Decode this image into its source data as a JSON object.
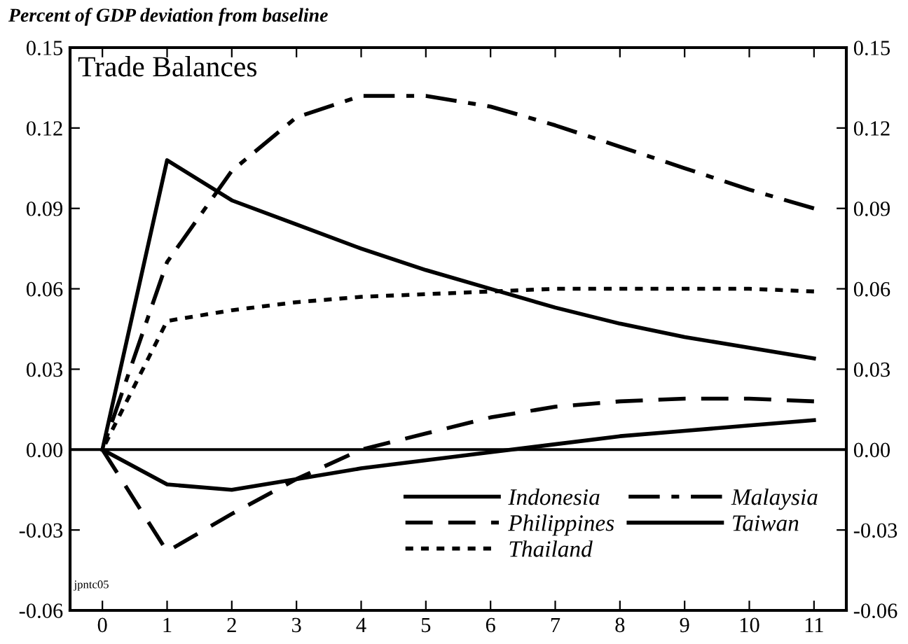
{
  "chart_data": {
    "type": "line",
    "title": "Trade Balances",
    "ylabel": "Percent of GDP deviation from baseline",
    "x": [
      0,
      1,
      2,
      3,
      4,
      5,
      6,
      7,
      8,
      9,
      10,
      11
    ],
    "series": [
      {
        "name": "Indonesia",
        "color": "#000000",
        "line_style": "solid",
        "values": [
          0,
          0.108,
          0.093,
          0.084,
          0.075,
          0.067,
          0.06,
          0.053,
          0.047,
          0.042,
          0.038,
          0.034
        ]
      },
      {
        "name": "Malaysia",
        "color": "#000000",
        "line_style": "dashdot",
        "values": [
          0,
          0.07,
          0.104,
          0.124,
          0.132,
          0.132,
          0.128,
          0.121,
          0.113,
          0.105,
          0.097,
          0.09
        ]
      },
      {
        "name": "Philippines",
        "color": "#000000",
        "line_style": "dashed",
        "values": [
          0,
          -0.038,
          -0.024,
          -0.011,
          0.0,
          0.006,
          0.012,
          0.016,
          0.018,
          0.019,
          0.019,
          0.018
        ]
      },
      {
        "name": "Taiwan",
        "color": "#000000",
        "line_style": "solid",
        "values": [
          0,
          -0.013,
          -0.015,
          -0.011,
          -0.007,
          -0.004,
          -0.001,
          0.002,
          0.005,
          0.007,
          0.009,
          0.011
        ]
      },
      {
        "name": "Thailand",
        "color": "#000000",
        "line_style": "dotted",
        "values": [
          0,
          0.048,
          0.052,
          0.055,
          0.057,
          0.058,
          0.059,
          0.06,
          0.06,
          0.06,
          0.06,
          0.059
        ]
      }
    ],
    "xlim": [
      -0.5,
      11.5
    ],
    "xticks": [
      0,
      1,
      2,
      3,
      4,
      5,
      6,
      7,
      8,
      9,
      10,
      11
    ],
    "ylim": [
      -0.06,
      0.15
    ],
    "yticks": [
      {
        "value": -0.06,
        "label": "-0.06"
      },
      {
        "value": -0.03,
        "label": "-0.03"
      },
      {
        "value": 0,
        "label": "0.00"
      },
      {
        "value": 0.03,
        "label": "0.03"
      },
      {
        "value": 0.06,
        "label": "0.06"
      },
      {
        "value": 0.09,
        "label": "0.09"
      },
      {
        "value": 0.12,
        "label": "0.12"
      },
      {
        "value": 0.15,
        "label": "0.15"
      }
    ],
    "y2lim": [
      -0.06,
      0.15
    ],
    "y2ticks": [
      {
        "value": -0.06,
        "label": "-0.06"
      },
      {
        "value": -0.03,
        "label": "-0.03"
      },
      {
        "value": 0,
        "label": "0.00"
      },
      {
        "value": 0.03,
        "label": "0.03"
      },
      {
        "value": 0.06,
        "label": "0.06"
      },
      {
        "value": 0.09,
        "label": "0.09"
      },
      {
        "value": 0.12,
        "label": "0.12"
      },
      {
        "value": 0.15,
        "label": "0.15"
      }
    ],
    "ref_lines": [
      {
        "axis": "y",
        "value": 0,
        "color": "#000000",
        "line_style": "solid"
      }
    ],
    "annotations": [
      "jpntc05"
    ],
    "grid": false,
    "legend": "bottom right",
    "marker": "none"
  }
}
